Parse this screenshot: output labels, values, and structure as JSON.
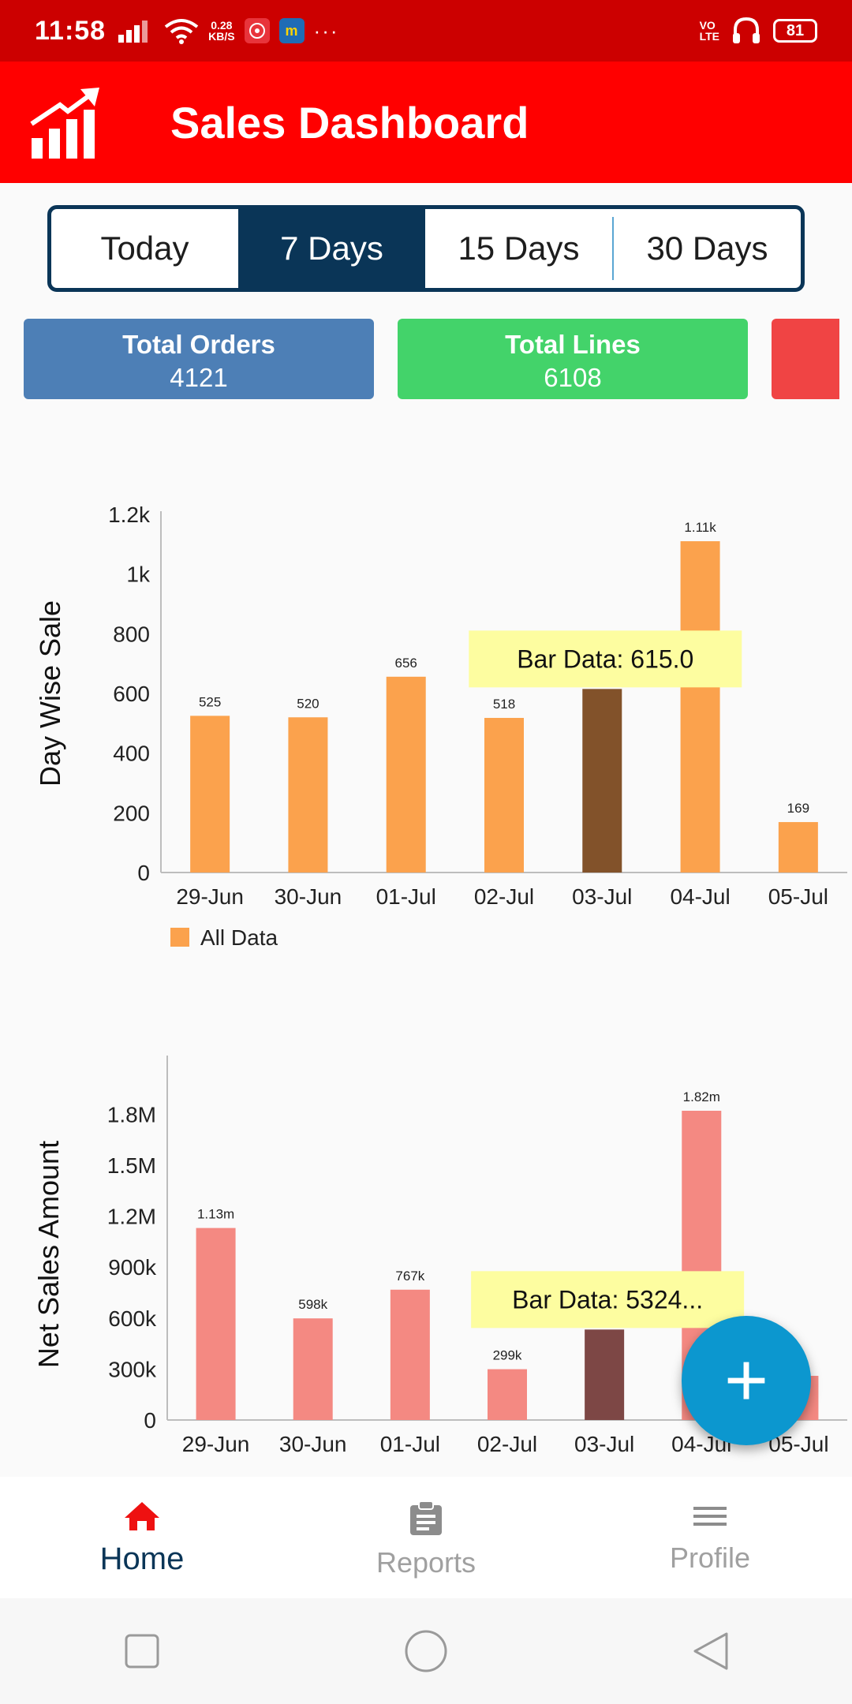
{
  "status_bar": {
    "time": "11:58",
    "net_speed_value": "0.28",
    "net_speed_unit": "KB/S",
    "app_badge_m": "m",
    "more": "···",
    "volte_top": "VO",
    "volte_bottom": "LTE",
    "battery": "81"
  },
  "app_bar": {
    "title": "Sales Dashboard"
  },
  "range_tabs": {
    "items": [
      {
        "label": "Today"
      },
      {
        "label": "7 Days"
      },
      {
        "label": "15 Days"
      },
      {
        "label": "30 Days"
      }
    ],
    "selected": "7 Days"
  },
  "cards": [
    {
      "label": "Total Orders",
      "value": "4121",
      "color": "#4d7fb6"
    },
    {
      "label": "Total Lines",
      "value": "6108",
      "color": "#43d36a"
    },
    {
      "label": "",
      "value": "",
      "color": "#f04444"
    }
  ],
  "chart_data": [
    {
      "type": "bar",
      "categories": [
        "29-Jun",
        "30-Jun",
        "01-Jul",
        "02-Jul",
        "03-Jul",
        "04-Jul",
        "05-Jul"
      ],
      "series": [
        {
          "name": "All Data",
          "values": [
            525,
            520,
            656,
            518,
            615,
            1110,
            169
          ]
        }
      ],
      "data_labels": [
        "525",
        "520",
        "656",
        "518",
        "",
        "1.11k",
        "169"
      ],
      "ylabel": "Day Wise Sale",
      "yticks": [
        "0",
        "200",
        "400",
        "600",
        "800",
        "1k",
        "1.2k"
      ],
      "ytick_values": [
        0,
        200,
        400,
        600,
        800,
        1000,
        1200
      ],
      "ylim": [
        0,
        1200
      ],
      "highlighted_index": 4,
      "tooltip": "Bar Data: 615.0",
      "bar_color": "#fba24d",
      "highlight_color": "#82522a",
      "legend": "bottom-left"
    },
    {
      "type": "bar",
      "categories": [
        "29-Jun",
        "30-Jun",
        "01-Jul",
        "02-Jul",
        "03-Jul",
        "04-Jul",
        "05-Jul"
      ],
      "series": [
        {
          "name": "",
          "values": [
            1130000,
            598000,
            767000,
            299000,
            532400,
            1820000,
            260000
          ]
        }
      ],
      "data_labels": [
        "1.13m",
        "598k",
        "767k",
        "299k",
        "",
        "1.82m",
        ""
      ],
      "ylabel": "Net Sales Amount",
      "yticks": [
        "0",
        "300k",
        "600k",
        "900k",
        "1.2M",
        "1.5M",
        "1.8M"
      ],
      "ytick_values": [
        0,
        300000,
        600000,
        900000,
        1200000,
        1500000,
        1800000
      ],
      "ylim": [
        0,
        1950000
      ],
      "highlighted_index": 4,
      "tooltip": "Bar Data: 5324...",
      "bar_color": "#f48982",
      "highlight_color": "#7d4745"
    }
  ],
  "fab": {
    "label": "+"
  },
  "bottom_nav": {
    "items": [
      {
        "label": "Home",
        "icon": "home-icon",
        "active": true
      },
      {
        "label": "Reports",
        "icon": "clipboard-icon",
        "active": false
      },
      {
        "label": "Profile",
        "icon": "menu-icon",
        "active": false
      }
    ]
  }
}
